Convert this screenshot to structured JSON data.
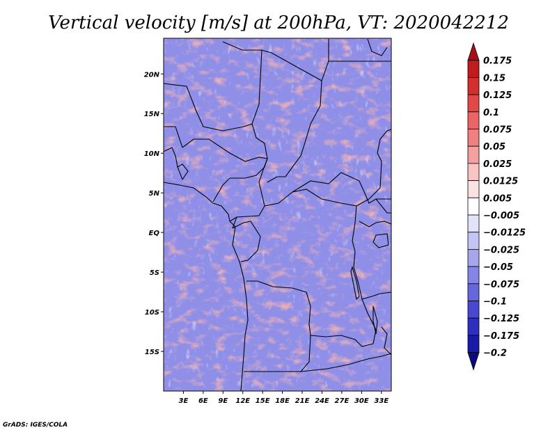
{
  "chart_data": {
    "type": "heatmap",
    "title": "Vertical velocity [m/s] at 200hPa, VT: 2020042212",
    "variable": "Vertical velocity",
    "units": "m/s",
    "level": "200hPa",
    "valid_time": "2020042212",
    "x_ticks": [
      "3E",
      "6E",
      "9E",
      "12E",
      "15E",
      "18E",
      "21E",
      "24E",
      "27E",
      "30E",
      "33E"
    ],
    "x_tick_values": [
      3,
      6,
      9,
      12,
      15,
      18,
      21,
      24,
      27,
      30,
      33
    ],
    "y_ticks": [
      "20N",
      "15N",
      "10N",
      "5N",
      "EQ",
      "5S",
      "10S",
      "15S"
    ],
    "y_tick_values": [
      20,
      15,
      10,
      5,
      0,
      -5,
      -10,
      -15
    ],
    "xlim": [
      0,
      34.5
    ],
    "ylim": [
      -20,
      24.5
    ],
    "colorbar": {
      "levels": [
        "0.175",
        "0.15",
        "0.125",
        "0.1",
        "0.075",
        "0.05",
        "0.025",
        "0.0125",
        "0.005",
        "−0.005",
        "−0.0125",
        "−0.025",
        "−0.05",
        "−0.075",
        "−0.1",
        "−0.125",
        "−0.175",
        "−0.2"
      ],
      "colors": [
        "#a50f15",
        "#c11b1f",
        "#d32f2f",
        "#e34848",
        "#ec6464",
        "#f07f7f",
        "#f4a0a0",
        "#f8c4c4",
        "#fbe1e1",
        "#ffffff",
        "#e2e2fb",
        "#c5c5f5",
        "#a6a6ee",
        "#8585e6",
        "#6666dd",
        "#4848d0",
        "#2e2ec0",
        "#1a1aa8",
        "#0b0b80"
      ]
    },
    "credit": "GrADS: IGES/COLA"
  }
}
